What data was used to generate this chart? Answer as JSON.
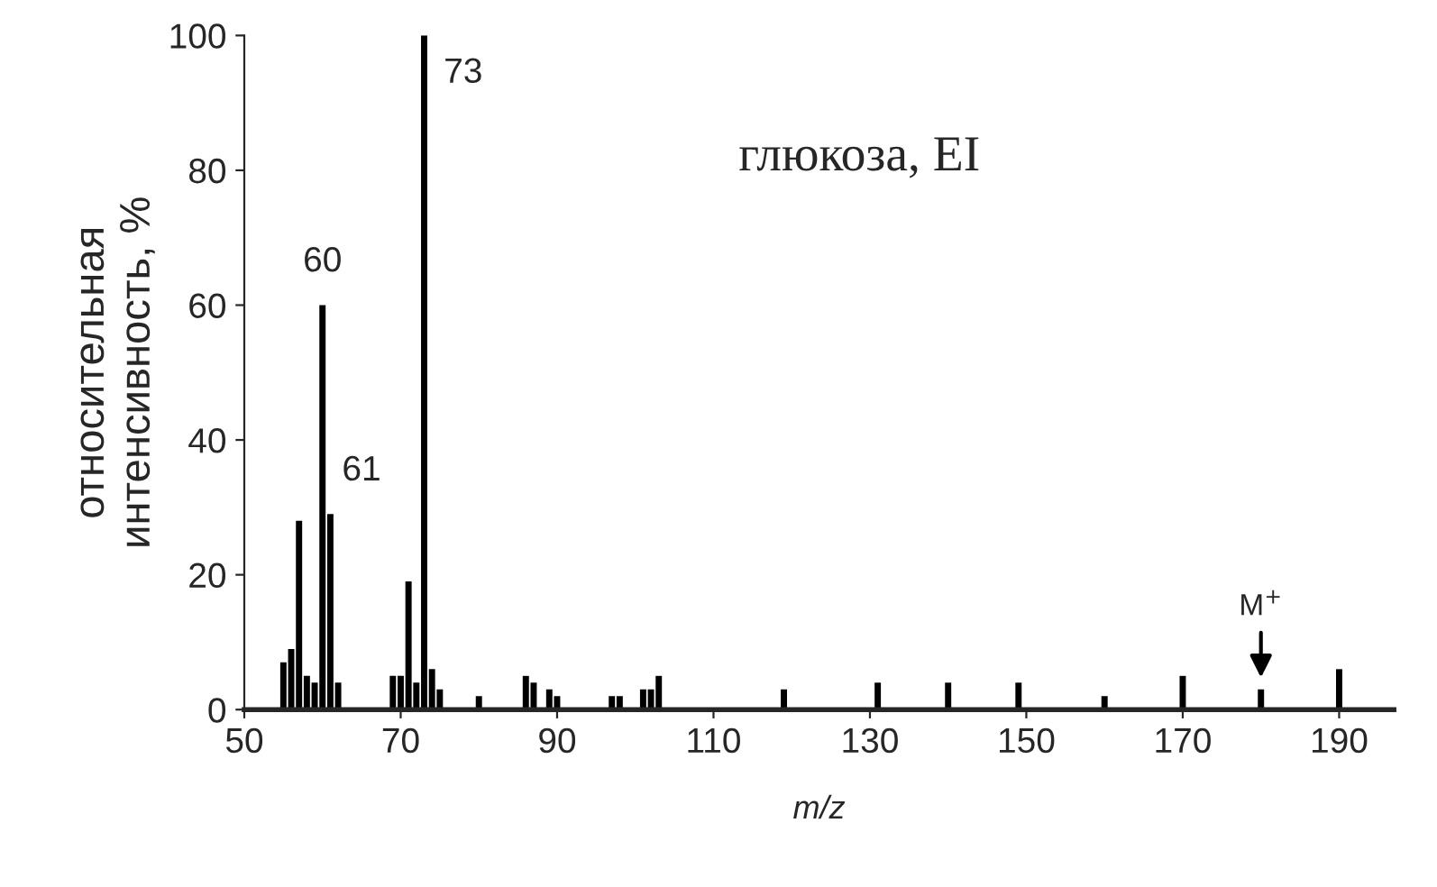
{
  "chart_data": {
    "type": "bar",
    "title": "глюкоза, EI",
    "xlabel": "m/z",
    "ylabel": "относительная\nинтенсивность, %",
    "x": [
      55,
      56,
      57,
      58,
      59,
      60,
      61,
      62,
      69,
      70,
      71,
      72,
      73,
      74,
      75,
      80,
      86,
      87,
      89,
      90,
      97,
      98,
      101,
      102,
      103,
      119,
      131,
      140,
      149,
      160,
      170,
      180,
      190
    ],
    "values": [
      7,
      9,
      28,
      5,
      4,
      60,
      29,
      4,
      5,
      5,
      19,
      4,
      100,
      6,
      3,
      2,
      5,
      4,
      3,
      2,
      2,
      2,
      3,
      3,
      5,
      3,
      4,
      4,
      4,
      2,
      5,
      3,
      6
    ],
    "color": "#000000",
    "annotations": [
      {
        "text": "60",
        "x": 60,
        "y": 60
      },
      {
        "text": "61",
        "x": 61,
        "y": 29
      },
      {
        "text": "73",
        "x": 73,
        "y": 100
      },
      {
        "text": "M$^{+}$",
        "x": 180,
        "y": 3
      }
    ],
    "xlim": [
      50,
      197
    ],
    "ylim": [
      0,
      100
    ],
    "xticks": [
      50,
      70,
      90,
      110,
      130,
      150,
      170,
      190
    ],
    "yticks": [
      0,
      20,
      40,
      60,
      80,
      100
    ],
    "grid": false,
    "legend": false
  }
}
